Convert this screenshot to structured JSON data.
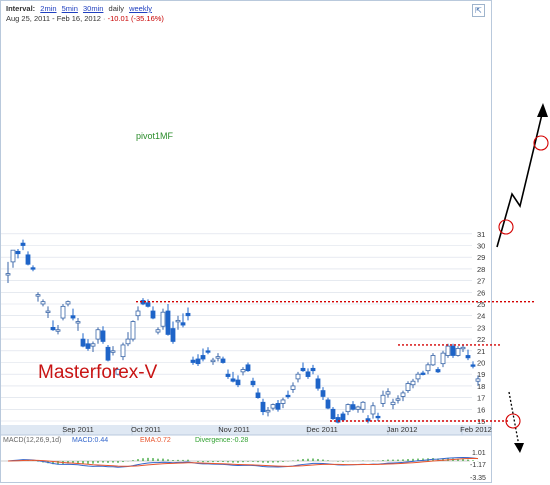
{
  "header": {
    "interval_label": "Interval:",
    "interval_links": [
      "2min",
      "5min",
      "30min"
    ],
    "daily": "daily",
    "weekly": "weekly",
    "date_range": "Aug 25, 2011 - Feb 16, 2012",
    "change": "-10.01 (-35.16%)"
  },
  "annotations": {
    "pivot_label": "pivot1MF",
    "watermark": "Masterforex-V"
  },
  "macd": {
    "params": "MACD(12,26,9,1d)",
    "macd": "MACD:0.44",
    "ema": "EMA:0.72",
    "divergence": "Divergence:-0.28",
    "right_labels": [
      "1.01",
      "-1.17",
      "-3.35"
    ]
  },
  "colors": {
    "up": "#ffffff",
    "down": "#1e64c8",
    "red_line": "#d40000",
    "grid": "#d8dee8",
    "macd": "#3366cc",
    "ema": "#e8552e",
    "hist": "#2fa12f"
  },
  "chart_data": {
    "type": "candlestick",
    "y_axis": {
      "ticks": [
        15,
        16,
        17,
        18,
        19,
        20,
        21,
        22,
        23,
        24,
        25,
        26,
        27,
        28,
        29,
        30,
        31
      ]
    },
    "x_axis": {
      "ticks": [
        "Sep 2011",
        "Oct 2011",
        "Nov 2011",
        "Dec 2011",
        "Jan 2012",
        "Feb 2012"
      ]
    },
    "levels": [
      25.2,
      21.5,
      15.0
    ],
    "candles": [
      [
        0,
        27.6,
        28.6,
        26.8,
        27.6
      ],
      [
        1,
        28.6,
        29.6,
        28.1,
        29.6
      ],
      [
        2,
        29.5,
        29.7,
        28.9,
        29.3
      ],
      [
        3,
        30.2,
        30.5,
        29.6,
        30.0
      ],
      [
        4,
        29.2,
        29.5,
        28.3,
        28.4
      ],
      [
        5,
        28.1,
        28.3,
        27.8,
        28.0
      ],
      [
        6,
        25.7,
        26.0,
        25.2,
        25.8
      ],
      [
        7,
        25.0,
        25.4,
        24.8,
        25.2
      ],
      [
        8,
        24.3,
        24.8,
        23.8,
        24.4
      ],
      [
        9,
        23.0,
        23.6,
        22.7,
        22.8
      ],
      [
        10,
        22.8,
        23.2,
        22.4,
        22.8
      ],
      [
        11,
        23.8,
        25.0,
        23.6,
        24.8
      ],
      [
        12,
        25.0,
        25.3,
        24.8,
        25.2
      ],
      [
        13,
        24.0,
        24.6,
        23.6,
        23.8
      ],
      [
        14,
        23.4,
        23.8,
        22.7,
        23.5
      ],
      [
        15,
        22.0,
        22.5,
        21.3,
        21.4
      ],
      [
        16,
        21.6,
        22.0,
        21.0,
        21.2
      ],
      [
        17,
        21.4,
        21.8,
        20.9,
        21.6
      ],
      [
        18,
        22.0,
        23.0,
        21.6,
        22.8
      ],
      [
        19,
        22.7,
        23.1,
        21.6,
        21.8
      ],
      [
        20,
        21.3,
        21.5,
        20.1,
        20.2
      ],
      [
        21,
        21.0,
        21.4,
        20.6,
        21.0
      ],
      [
        22,
        19.0,
        19.5,
        18.9,
        19.4
      ],
      [
        23,
        20.5,
        21.7,
        20.2,
        21.5
      ],
      [
        24,
        21.6,
        22.6,
        21.4,
        22.0
      ],
      [
        25,
        22.0,
        23.6,
        21.8,
        23.5
      ],
      [
        26,
        24.0,
        24.8,
        23.6,
        24.4
      ],
      [
        27,
        25.3,
        25.5,
        24.9,
        25.0
      ],
      [
        28,
        25.1,
        25.4,
        24.7,
        24.8
      ],
      [
        29,
        24.4,
        24.8,
        23.7,
        23.8
      ],
      [
        30,
        22.6,
        23.0,
        22.4,
        22.8
      ],
      [
        31,
        23.1,
        24.6,
        22.8,
        24.3
      ],
      [
        32,
        24.4,
        25.0,
        22.3,
        22.4
      ],
      [
        33,
        22.9,
        23.5,
        21.6,
        21.8
      ],
      [
        34,
        23.5,
        24.0,
        22.8,
        23.6
      ],
      [
        35,
        23.4,
        24.2,
        23.0,
        23.2
      ],
      [
        36,
        24.2,
        24.7,
        23.6,
        24.0
      ],
      [
        37,
        20.2,
        20.5,
        19.8,
        20.0
      ],
      [
        38,
        20.3,
        20.7,
        19.7,
        19.9
      ],
      [
        39,
        20.6,
        21.2,
        20.1,
        20.3
      ],
      [
        40,
        21.0,
        21.3,
        20.7,
        20.9
      ],
      [
        41,
        20.1,
        20.4,
        19.8,
        20.2
      ],
      [
        42,
        20.4,
        20.8,
        20.1,
        20.5
      ],
      [
        43,
        20.3,
        20.5,
        19.9,
        20.0
      ],
      [
        44,
        19.0,
        19.4,
        18.6,
        18.8
      ],
      [
        45,
        18.6,
        19.2,
        18.3,
        18.4
      ],
      [
        46,
        18.5,
        18.9,
        17.9,
        18.1
      ],
      [
        47,
        19.2,
        19.6,
        18.9,
        19.4
      ],
      [
        48,
        19.8,
        20.0,
        19.2,
        19.3
      ],
      [
        49,
        18.4,
        18.7,
        17.9,
        18.1
      ],
      [
        50,
        17.4,
        17.8,
        16.9,
        17.0
      ],
      [
        51,
        16.6,
        16.9,
        15.5,
        15.8
      ],
      [
        52,
        15.8,
        16.2,
        15.4,
        15.9
      ],
      [
        53,
        16.1,
        16.5,
        15.9,
        16.4
      ],
      [
        54,
        16.5,
        16.8,
        15.8,
        16.0
      ],
      [
        55,
        16.5,
        17.0,
        16.1,
        16.8
      ],
      [
        56,
        17.2,
        17.6,
        16.9,
        17.1
      ],
      [
        57,
        17.7,
        18.3,
        17.4,
        18.0
      ],
      [
        58,
        18.6,
        19.2,
        18.3,
        19.0
      ],
      [
        59,
        19.5,
        20.0,
        19.2,
        19.3
      ],
      [
        60,
        19.2,
        19.5,
        18.6,
        18.8
      ],
      [
        61,
        19.5,
        19.8,
        19.0,
        19.3
      ],
      [
        62,
        18.6,
        18.9,
        17.6,
        17.8
      ],
      [
        63,
        17.6,
        17.9,
        16.8,
        17.1
      ],
      [
        64,
        16.8,
        17.0,
        16.0,
        16.1
      ],
      [
        65,
        16.0,
        16.2,
        15.1,
        15.2
      ],
      [
        66,
        15.3,
        15.6,
        14.8,
        14.9
      ],
      [
        67,
        15.6,
        15.8,
        15.0,
        15.1
      ],
      [
        68,
        15.8,
        16.5,
        15.5,
        16.4
      ],
      [
        69,
        16.4,
        16.7,
        15.9,
        16.0
      ],
      [
        70,
        16.0,
        16.3,
        15.7,
        16.2
      ],
      [
        71,
        16.0,
        16.7,
        15.7,
        16.6
      ],
      [
        72,
        15.2,
        15.5,
        14.8,
        15.0
      ],
      [
        73,
        15.6,
        16.6,
        15.2,
        16.3
      ],
      [
        74,
        15.4,
        15.7,
        15.0,
        15.3
      ],
      [
        75,
        16.5,
        17.6,
        16.2,
        17.2
      ],
      [
        76,
        17.3,
        17.8,
        17.0,
        17.5
      ],
      [
        77,
        16.4,
        16.9,
        16.0,
        16.6
      ],
      [
        78,
        16.8,
        17.2,
        16.5,
        16.9
      ],
      [
        79,
        17.1,
        17.6,
        16.7,
        17.4
      ],
      [
        80,
        17.6,
        18.4,
        17.4,
        18.2
      ],
      [
        81,
        18.1,
        18.6,
        17.8,
        18.4
      ],
      [
        82,
        18.6,
        19.2,
        18.3,
        19.0
      ],
      [
        83,
        19.1,
        19.3,
        18.9,
        19.0
      ],
      [
        84,
        19.3,
        20.0,
        19.0,
        19.8
      ],
      [
        85,
        19.8,
        20.8,
        19.7,
        20.6
      ],
      [
        86,
        19.4,
        19.6,
        19.1,
        19.2
      ],
      [
        87,
        19.9,
        21.0,
        19.6,
        20.8
      ],
      [
        88,
        20.6,
        21.6,
        20.4,
        21.4
      ],
      [
        89,
        21.4,
        21.6,
        20.4,
        20.6
      ],
      [
        90,
        20.6,
        21.4,
        20.5,
        21.2
      ],
      [
        91,
        21.2,
        21.5,
        20.9,
        21.3
      ],
      [
        92,
        20.6,
        21.1,
        20.2,
        20.4
      ],
      [
        93,
        19.8,
        20.1,
        19.5,
        19.7
      ],
      [
        94,
        18.4,
        18.9,
        18.0,
        18.6
      ]
    ]
  }
}
